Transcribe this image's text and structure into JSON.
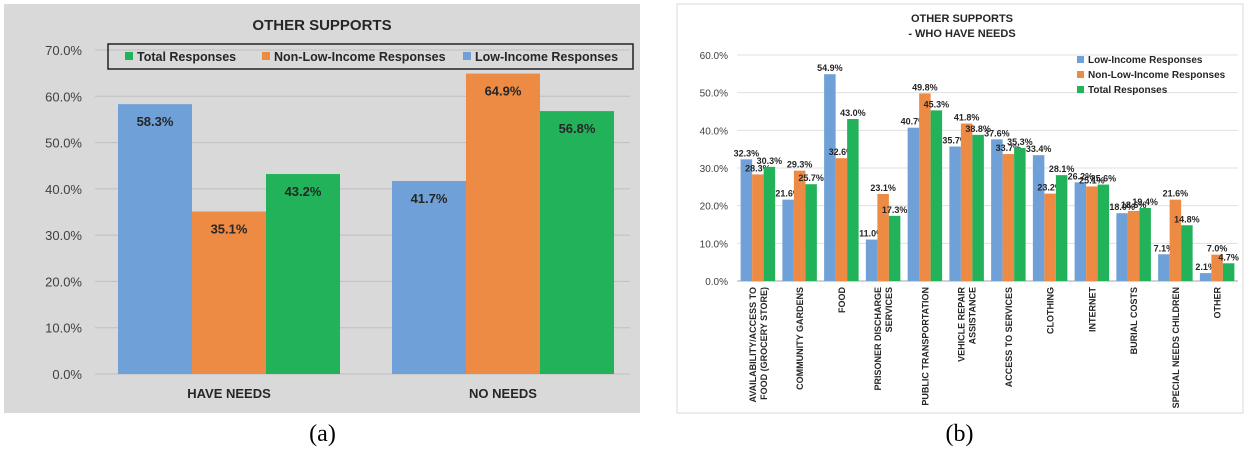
{
  "chart_data": [
    {
      "type": "bar",
      "title": "OTHER SUPPORTS",
      "categories": [
        "HAVE NEEDS",
        "NO NEEDS"
      ],
      "series": [
        {
          "name": "Low-Income Responses",
          "color": "#6fa0d7",
          "values": [
            58.3,
            41.7
          ],
          "labels": [
            "58.3%",
            "41.7%"
          ]
        },
        {
          "name": "Non-Low-Income Responses",
          "color": "#ed8a44",
          "values": [
            35.1,
            64.9
          ],
          "labels": [
            "35.1%",
            "64.9%"
          ]
        },
        {
          "name": "Total Responses",
          "color": "#22b25a",
          "values": [
            43.2,
            56.8
          ],
          "labels": [
            "43.2%",
            "56.8%"
          ]
        }
      ],
      "legend_order": [
        "Total Responses",
        "Non-Low-Income Responses",
        "Low-Income Responses"
      ],
      "ylim": [
        0,
        70
      ],
      "yticks": [
        "0.0%",
        "10.0%",
        "20.0%",
        "30.0%",
        "40.0%",
        "50.0%",
        "60.0%",
        "70.0%"
      ],
      "grid": true,
      "legend_position": "top",
      "caption": "(a)"
    },
    {
      "type": "bar",
      "title": "OTHER SUPPORTS",
      "subtitle": "- WHO HAVE NEEDS",
      "categories": [
        [
          "AVAILABILITY/ACCESS TO",
          "FOOD (GROCERY STORE)"
        ],
        [
          "COMMUNITY GARDENS"
        ],
        [
          "FOOD"
        ],
        [
          "PRISONER DISCHARGE",
          "SERVICES"
        ],
        [
          "PUBLIC TRANSPORTATION"
        ],
        [
          "VEHICLE REPAIR",
          "ASSISTANCE"
        ],
        [
          "ACCESS TO SERVICES"
        ],
        [
          "CLOTHING"
        ],
        [
          "INTERNET"
        ],
        [
          "BURIAL COSTS"
        ],
        [
          "SPECIAL NEEDS CHILDREN"
        ],
        [
          "OTHER"
        ]
      ],
      "series": [
        {
          "name": "Low-Income Responses",
          "color": "#6fa0d7",
          "values": [
            32.3,
            21.6,
            54.9,
            11.0,
            40.7,
            35.7,
            37.6,
            33.4,
            26.2,
            18.0,
            7.1,
            2.1
          ],
          "labels": [
            "32.3%",
            "21.6%",
            "54.9%",
            "11.0%",
            "40.7%",
            "35.7%",
            "37.6%",
            "33.4%",
            "26.2%",
            "18.0%",
            "7.1%",
            "2.1%"
          ]
        },
        {
          "name": "Non-Low-Income Responses",
          "color": "#ed8a44",
          "values": [
            28.3,
            29.3,
            32.6,
            23.1,
            49.8,
            41.8,
            33.7,
            23.2,
            25.1,
            18.6,
            21.6,
            7.0
          ],
          "labels": [
            "28.3%",
            "29.3%",
            "32.6%",
            "23.1%",
            "49.8%",
            "41.8%",
            "33.7%",
            "23.2%",
            "25.1%",
            "18.6%",
            "21.6%",
            "7.0%"
          ]
        },
        {
          "name": "Total Responses",
          "color": "#22b25a",
          "values": [
            30.3,
            25.7,
            43.0,
            17.3,
            45.3,
            38.8,
            35.3,
            28.1,
            25.6,
            19.4,
            14.8,
            4.7
          ],
          "labels": [
            "30.3%",
            "25.7%",
            "43.0%",
            "17.3%",
            "45.3%",
            "38.8%",
            "35.3%",
            "28.1%",
            "25.6%",
            "19.4%",
            "14.8%",
            "4.7%"
          ]
        }
      ],
      "legend_order": [
        "Low-Income Responses",
        "Non-Low-Income Responses",
        "Total Responses"
      ],
      "ylim": [
        0,
        60
      ],
      "yticks": [
        "0.0%",
        "10.0%",
        "20.0%",
        "30.0%",
        "40.0%",
        "50.0%",
        "60.0%"
      ],
      "grid": true,
      "legend_position": "top-right",
      "caption": "(b)"
    }
  ]
}
